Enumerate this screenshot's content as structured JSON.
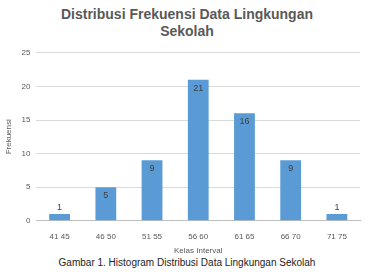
{
  "chart_data": {
    "type": "bar",
    "title": "Distribusi Frekuensi Data Lingkungan Sekolah",
    "x_label": "Kelas Interval",
    "y_label": "Frekuensi",
    "caption": "Gambar 1. Histogram Distribusi Data Lingkungan Sekolah",
    "categories": [
      "41 45",
      "46 50",
      "51 55",
      "56 60",
      "61 65",
      "66 70",
      "71 75"
    ],
    "values": [
      1,
      5,
      9,
      21,
      16,
      9,
      1
    ],
    "color": "#5b9bd5",
    "ylim": [
      0,
      25
    ],
    "yticks": [
      0,
      5,
      10,
      15,
      20,
      25
    ],
    "grid": true,
    "data_labels": true
  }
}
